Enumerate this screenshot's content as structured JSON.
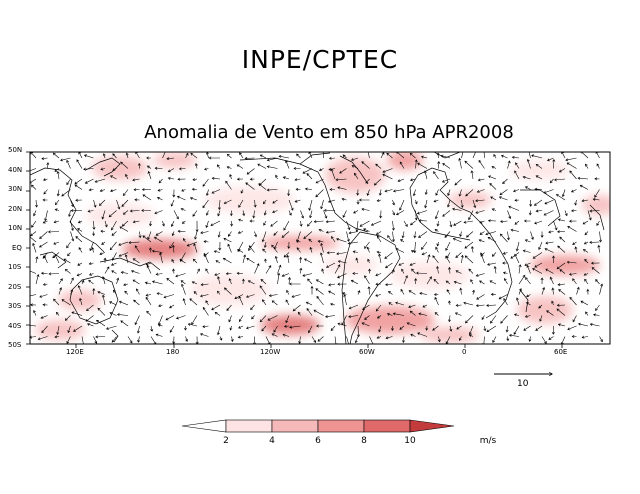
{
  "header": {
    "agency": "INPE/CPTEC",
    "title": "Anomalia de Vento em 850 hPa APR2008"
  },
  "map": {
    "lat_labels": [
      "50N",
      "40N",
      "30N",
      "20N",
      "10N",
      "EQ",
      "10S",
      "20S",
      "30S",
      "40S",
      "50S"
    ],
    "lon_labels": [
      "120E",
      "180",
      "120W",
      "60W",
      "0",
      "60E"
    ],
    "shading_color": "#e8888a"
  },
  "reference_vector": {
    "label": "10",
    "magnitude": 10
  },
  "colorbar": {
    "ticks": [
      "2",
      "4",
      "6",
      "8",
      "10"
    ],
    "unit": "m/s",
    "colors": [
      "#ffffff",
      "#fde3e3",
      "#f6b9b9",
      "#ef9393",
      "#e06a6a",
      "#c33b3b",
      "#a51f1f"
    ]
  }
}
